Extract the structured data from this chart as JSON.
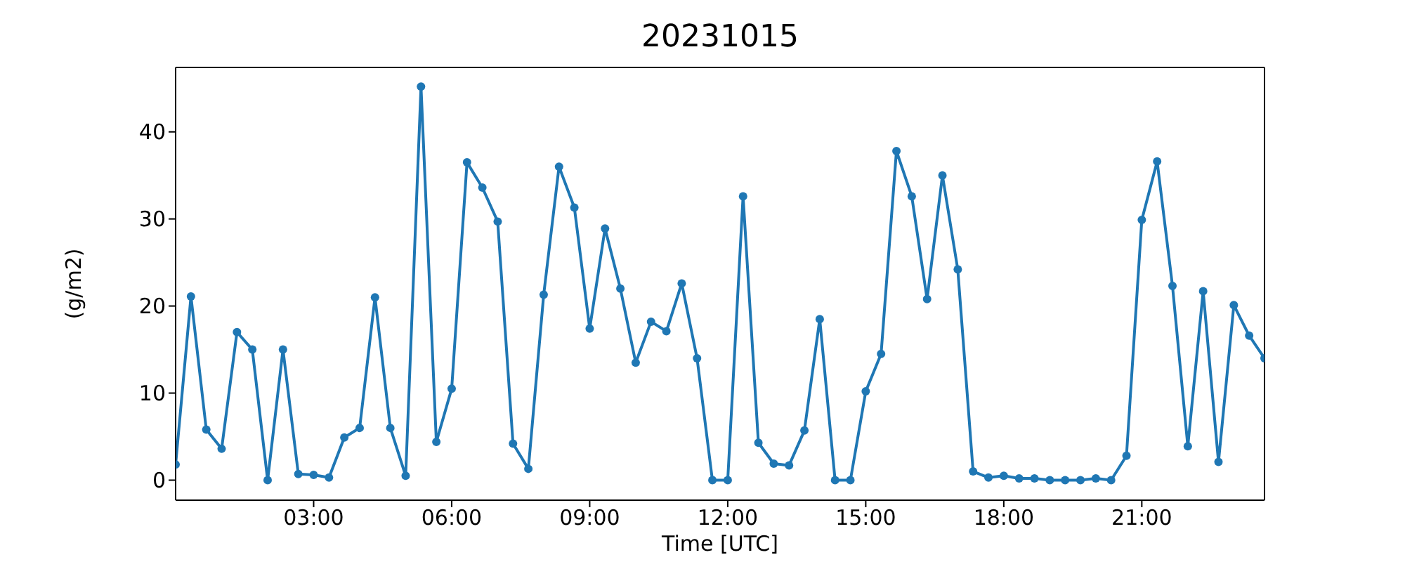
{
  "chart_data": {
    "type": "line",
    "title": "20231015",
    "xlabel": "Time [UTC]",
    "ylabel": "(g/m2)",
    "x": [
      "2023-10-15T00:00",
      "2023-10-15T00:20",
      "2023-10-15T00:40",
      "2023-10-15T01:00",
      "2023-10-15T01:20",
      "2023-10-15T01:40",
      "2023-10-15T02:00",
      "2023-10-15T02:20",
      "2023-10-15T02:40",
      "2023-10-15T03:00",
      "2023-10-15T03:20",
      "2023-10-15T03:40",
      "2023-10-15T04:00",
      "2023-10-15T04:20",
      "2023-10-15T04:40",
      "2023-10-15T05:00",
      "2023-10-15T05:20",
      "2023-10-15T05:40",
      "2023-10-15T06:00",
      "2023-10-15T06:20",
      "2023-10-15T06:40",
      "2023-10-15T07:00",
      "2023-10-15T07:20",
      "2023-10-15T07:40",
      "2023-10-15T08:00",
      "2023-10-15T08:20",
      "2023-10-15T08:40",
      "2023-10-15T09:00",
      "2023-10-15T09:20",
      "2023-10-15T09:40",
      "2023-10-15T10:00",
      "2023-10-15T10:20",
      "2023-10-15T10:40",
      "2023-10-15T11:00",
      "2023-10-15T11:20",
      "2023-10-15T11:40",
      "2023-10-15T12:00",
      "2023-10-15T12:20",
      "2023-10-15T12:40",
      "2023-10-15T13:00",
      "2023-10-15T13:20",
      "2023-10-15T13:40",
      "2023-10-15T14:00",
      "2023-10-15T14:20",
      "2023-10-15T14:40",
      "2023-10-15T15:00",
      "2023-10-15T15:20",
      "2023-10-15T15:40",
      "2023-10-15T16:00",
      "2023-10-15T16:20",
      "2023-10-15T16:40",
      "2023-10-15T17:00",
      "2023-10-15T17:20",
      "2023-10-15T17:40",
      "2023-10-15T18:00",
      "2023-10-15T18:20",
      "2023-10-15T18:40",
      "2023-10-15T19:00",
      "2023-10-15T19:20",
      "2023-10-15T19:40",
      "2023-10-15T20:00",
      "2023-10-15T20:20",
      "2023-10-15T20:40",
      "2023-10-15T21:00",
      "2023-10-15T21:20",
      "2023-10-15T21:40",
      "2023-10-15T22:00",
      "2023-10-15T22:20",
      "2023-10-15T22:40",
      "2023-10-15T23:00",
      "2023-10-15T23:20",
      "2023-10-15T23:40"
    ],
    "series": [
      {
        "color": "#1f77b4",
        "values": [
          1.8,
          21.1,
          5.8,
          3.6,
          17,
          15,
          0,
          15,
          0.7,
          0.6,
          0.3,
          4.9,
          6,
          21,
          6,
          0.5,
          45.2,
          4.4,
          10.5,
          36.5,
          33.6,
          29.7,
          4.2,
          1.3,
          21.3,
          36,
          31.3,
          17.4,
          28.9,
          22,
          13.5,
          18.2,
          17.1,
          22.6,
          14,
          0,
          0,
          32.6,
          4.3,
          1.9,
          1.7,
          5.7,
          18.5,
          0,
          0,
          10.2,
          14.5,
          37.8,
          32.6,
          20.8,
          35,
          24.2,
          1,
          0.3,
          0.5,
          0.2,
          0.2,
          0,
          0,
          0,
          0.2,
          0,
          2.8,
          29.9,
          36.6,
          22.3,
          3.9,
          21.7,
          2.1,
          20.1,
          16.6,
          14
        ]
      }
    ],
    "xlim": [
      "2023-10-15T00:00",
      "2023-10-15T23:40"
    ],
    "xticks": [
      {
        "value": "2023-10-15T03:00",
        "label": "03:00"
      },
      {
        "value": "2023-10-15T06:00",
        "label": "06:00"
      },
      {
        "value": "2023-10-15T09:00",
        "label": "09:00"
      },
      {
        "value": "2023-10-15T12:00",
        "label": "12:00"
      },
      {
        "value": "2023-10-15T15:00",
        "label": "15:00"
      },
      {
        "value": "2023-10-15T18:00",
        "label": "18:00"
      },
      {
        "value": "2023-10-15T21:00",
        "label": "21:00"
      }
    ],
    "ylim": [
      -2.3,
      47.4
    ],
    "yticks": [
      0,
      10,
      20,
      30,
      40
    ],
    "marker": "circle",
    "line_style": "solid",
    "grid": false,
    "legend": false
  }
}
